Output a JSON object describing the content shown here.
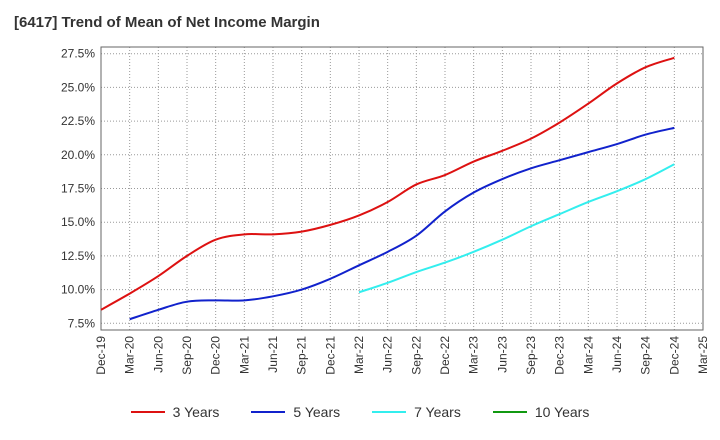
{
  "chart_data": {
    "type": "line",
    "title": "[6417]  Trend of Mean of Net Income Margin",
    "xlabel": "",
    "ylabel": "",
    "x": [
      "Dec-19",
      "Mar-20",
      "Jun-20",
      "Sep-20",
      "Dec-20",
      "Mar-21",
      "Jun-21",
      "Sep-21",
      "Dec-21",
      "Mar-22",
      "Jun-22",
      "Sep-22",
      "Dec-22",
      "Mar-23",
      "Jun-23",
      "Sep-23",
      "Dec-23",
      "Mar-24",
      "Jun-24",
      "Sep-24",
      "Dec-24",
      "Mar-25"
    ],
    "ylim": [
      7.0,
      28.0
    ],
    "yticks": [
      7.5,
      10.0,
      12.5,
      15.0,
      17.5,
      20.0,
      22.5,
      25.0,
      27.5
    ],
    "ytick_labels": [
      "7.5%",
      "10.0%",
      "12.5%",
      "15.0%",
      "17.5%",
      "20.0%",
      "22.5%",
      "25.0%",
      "27.5%"
    ],
    "grid": true,
    "legend_position": "bottom",
    "series": [
      {
        "name": "3 Years",
        "color": "#dd1111",
        "values": [
          8.5,
          9.7,
          11.0,
          12.5,
          13.7,
          14.1,
          14.1,
          14.3,
          14.8,
          15.5,
          16.5,
          17.8,
          18.5,
          19.5,
          20.3,
          21.2,
          22.4,
          23.8,
          25.3,
          26.5,
          27.2,
          null
        ]
      },
      {
        "name": "5 Years",
        "color": "#1122cc",
        "values": [
          null,
          7.8,
          8.5,
          9.1,
          9.2,
          9.2,
          9.5,
          10.0,
          10.8,
          11.8,
          12.8,
          14.0,
          15.8,
          17.2,
          18.2,
          19.0,
          19.6,
          20.2,
          20.8,
          21.5,
          22.0,
          null
        ]
      },
      {
        "name": "7 Years",
        "color": "#33eeee",
        "values": [
          null,
          null,
          null,
          null,
          null,
          null,
          null,
          null,
          null,
          9.8,
          10.5,
          11.3,
          12.0,
          12.8,
          13.7,
          14.7,
          15.6,
          16.5,
          17.3,
          18.2,
          19.3,
          null
        ]
      },
      {
        "name": "10 Years",
        "color": "#119911",
        "values": [
          null,
          null,
          null,
          null,
          null,
          null,
          null,
          null,
          null,
          null,
          null,
          null,
          null,
          null,
          null,
          null,
          null,
          null,
          null,
          null,
          null,
          null
        ]
      }
    ]
  }
}
